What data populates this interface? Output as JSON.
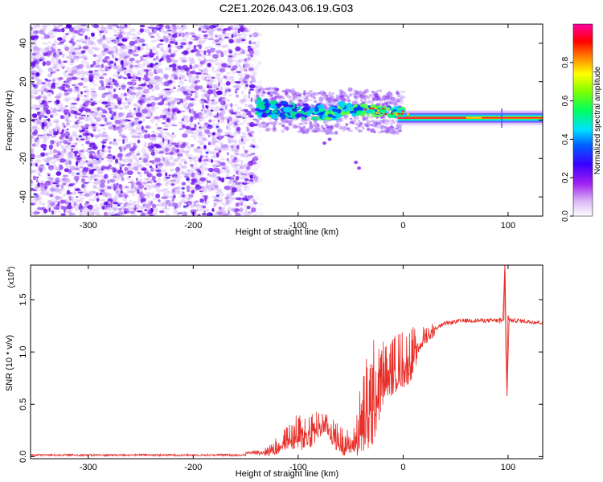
{
  "figure_title": "C2E1.2026.043.06.19.G03",
  "chart_data": [
    {
      "type": "heatmap",
      "title": "C2E1.2026.043.06.19.G03",
      "xlabel": "Height of straight line (km)",
      "ylabel": "Frequency (Hz)",
      "xlim": [
        -355,
        133
      ],
      "ylim": [
        -50,
        50
      ],
      "xticks": [
        -300,
        -200,
        -100,
        0,
        100
      ],
      "yticks": [
        -40,
        -20,
        0,
        20,
        40
      ],
      "xtick_labels": [
        "-300",
        "-200",
        "-100",
        "0",
        "100"
      ],
      "ytick_labels": [
        "-40",
        "-20",
        "0",
        "20",
        "40"
      ],
      "colorbar": {
        "label": "Normalized spectral amplitude",
        "range": [
          0,
          1
        ],
        "ticks": [
          0.0,
          0.2,
          0.4,
          0.6,
          0.8
        ],
        "tick_labels": [
          "0.0",
          "0.2",
          "0.4",
          "0.6",
          "0.8"
        ],
        "colors": [
          "#ffffff",
          "#a020f0",
          "#0000ff",
          "#00ffff",
          "#00ff00",
          "#ffff00",
          "#ff8000",
          "#ff0000",
          "#ff00ff"
        ]
      },
      "regions": [
        {
          "name": "noise",
          "x_range": [
            -355,
            -140
          ],
          "y_range": [
            -50,
            50
          ],
          "amplitude": 0.1
        },
        {
          "name": "signal-trace",
          "x_range": [
            -140,
            133
          ],
          "freq_at_start": 10,
          "freq_at_end": 1,
          "amplitude_start": 0.3,
          "amplitude_end": 0.9
        }
      ]
    },
    {
      "type": "line",
      "xlabel": "Height of straight line (km)",
      "ylabel": "SNR (10 * v/v)",
      "y_multiplier": "(x10",
      "y_multiplier_exp": "4",
      "y_multiplier_close": ")",
      "xlim": [
        -355,
        133
      ],
      "ylim": [
        -0.02,
        1.83
      ],
      "xticks": [
        -300,
        -200,
        -100,
        0,
        100
      ],
      "yticks": [
        0.0,
        0.5,
        1.0,
        1.5
      ],
      "xtick_labels": [
        "-300",
        "-200",
        "-100",
        "0",
        "100"
      ],
      "ytick_labels": [
        "0.0",
        "0.5",
        "1.0",
        "1.5"
      ],
      "series": [
        {
          "name": "SNR",
          "color": "#e8302a",
          "x": [
            -355,
            -300,
            -250,
            -200,
            -150,
            -130,
            -120,
            -110,
            -100,
            -90,
            -80,
            -75,
            -70,
            -60,
            -50,
            -45,
            -40,
            -35,
            -30,
            -25,
            -20,
            -15,
            -10,
            -5,
            0,
            5,
            10,
            15,
            20,
            30,
            40,
            50,
            60,
            70,
            80,
            90,
            95,
            97,
            99,
            101,
            105,
            110,
            120,
            133
          ],
          "y": [
            0.01,
            0.015,
            0.02,
            0.02,
            0.03,
            0.05,
            0.1,
            0.18,
            0.22,
            0.25,
            0.3,
            0.35,
            0.28,
            0.15,
            0.12,
            0.2,
            0.3,
            0.45,
            0.55,
            0.72,
            0.78,
            0.82,
            0.85,
            0.9,
            0.92,
            0.95,
            1.0,
            1.08,
            1.15,
            1.22,
            1.27,
            1.29,
            1.3,
            1.3,
            1.3,
            1.3,
            1.3,
            1.85,
            0.58,
            1.3,
            1.3,
            1.3,
            1.29,
            1.28
          ],
          "envelope_upper": [
            0.01,
            0.015,
            0.02,
            0.02,
            0.03,
            0.1,
            0.2,
            0.3,
            0.42,
            0.45,
            0.48,
            0.5,
            0.45,
            0.3,
            0.25,
            0.4,
            0.75,
            1.0,
            1.12,
            1.25,
            1.15,
            1.1,
            1.15,
            1.2,
            1.22,
            1.25,
            1.25,
            1.22,
            1.25,
            1.3,
            1.32,
            1.33,
            1.33,
            1.33,
            1.33,
            1.33,
            1.35,
            1.85,
            1.5,
            1.33,
            1.32,
            1.32,
            1.31,
            1.3
          ]
        }
      ]
    }
  ]
}
